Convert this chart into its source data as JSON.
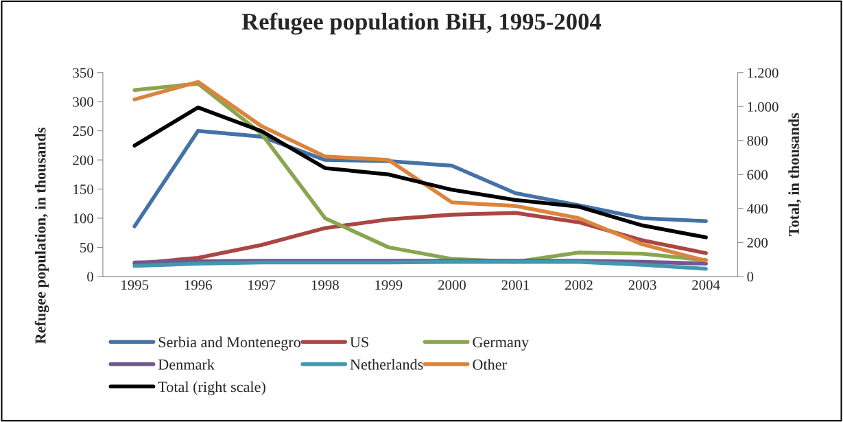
{
  "chart_data": {
    "type": "line",
    "title": "Refugee population BiH, 1995-2004",
    "ylabel": "Refugee population, in thousands",
    "y2label": "Total, in thousands",
    "categories": [
      "1995",
      "1996",
      "1997",
      "1998",
      "1999",
      "2000",
      "2001",
      "2002",
      "2003",
      "2004"
    ],
    "series": [
      {
        "name": "Serbia and Montenegro",
        "color": "#4472a8",
        "values": [
          86,
          250,
          240,
          200,
          198,
          190,
          143,
          122,
          100,
          95
        ]
      },
      {
        "name": "US",
        "color": "#aa4643",
        "values": [
          22,
          32,
          54,
          83,
          98,
          106,
          109,
          93,
          62,
          40
        ]
      },
      {
        "name": "Germany",
        "color": "#89a54e",
        "values": [
          320,
          331,
          245,
          100,
          50,
          30,
          25,
          41,
          39,
          28
        ]
      },
      {
        "name": "Denmark",
        "color": "#71588f",
        "values": [
          24,
          26,
          27,
          27,
          27,
          27,
          27,
          27,
          25,
          22
        ]
      },
      {
        "name": "Netherlands",
        "color": "#4198af",
        "values": [
          18,
          22,
          24,
          24,
          24,
          25,
          25,
          25,
          20,
          13
        ]
      },
      {
        "name": "Other",
        "color": "#db843d",
        "values": [
          304,
          334,
          258,
          206,
          200,
          127,
          121,
          100,
          55,
          27
        ]
      },
      {
        "name": "Total (right scale)",
        "color": "#000000",
        "axis": "y2",
        "values": [
          770,
          995,
          855,
          638,
          600,
          510,
          450,
          410,
          300,
          230
        ]
      }
    ],
    "ylim": [
      0,
      350
    ],
    "yticks": [
      0,
      50,
      100,
      150,
      200,
      250,
      300,
      350
    ],
    "y2lim": [
      0,
      1200
    ],
    "y2ticks": [
      0,
      200,
      400,
      600,
      800,
      {
        "value": 1000,
        "label": "1.000"
      },
      {
        "value": 1200,
        "label": "1.200"
      }
    ],
    "legend": "bottom",
    "grid": false,
    "marker": "none",
    "line_style": "solid"
  }
}
